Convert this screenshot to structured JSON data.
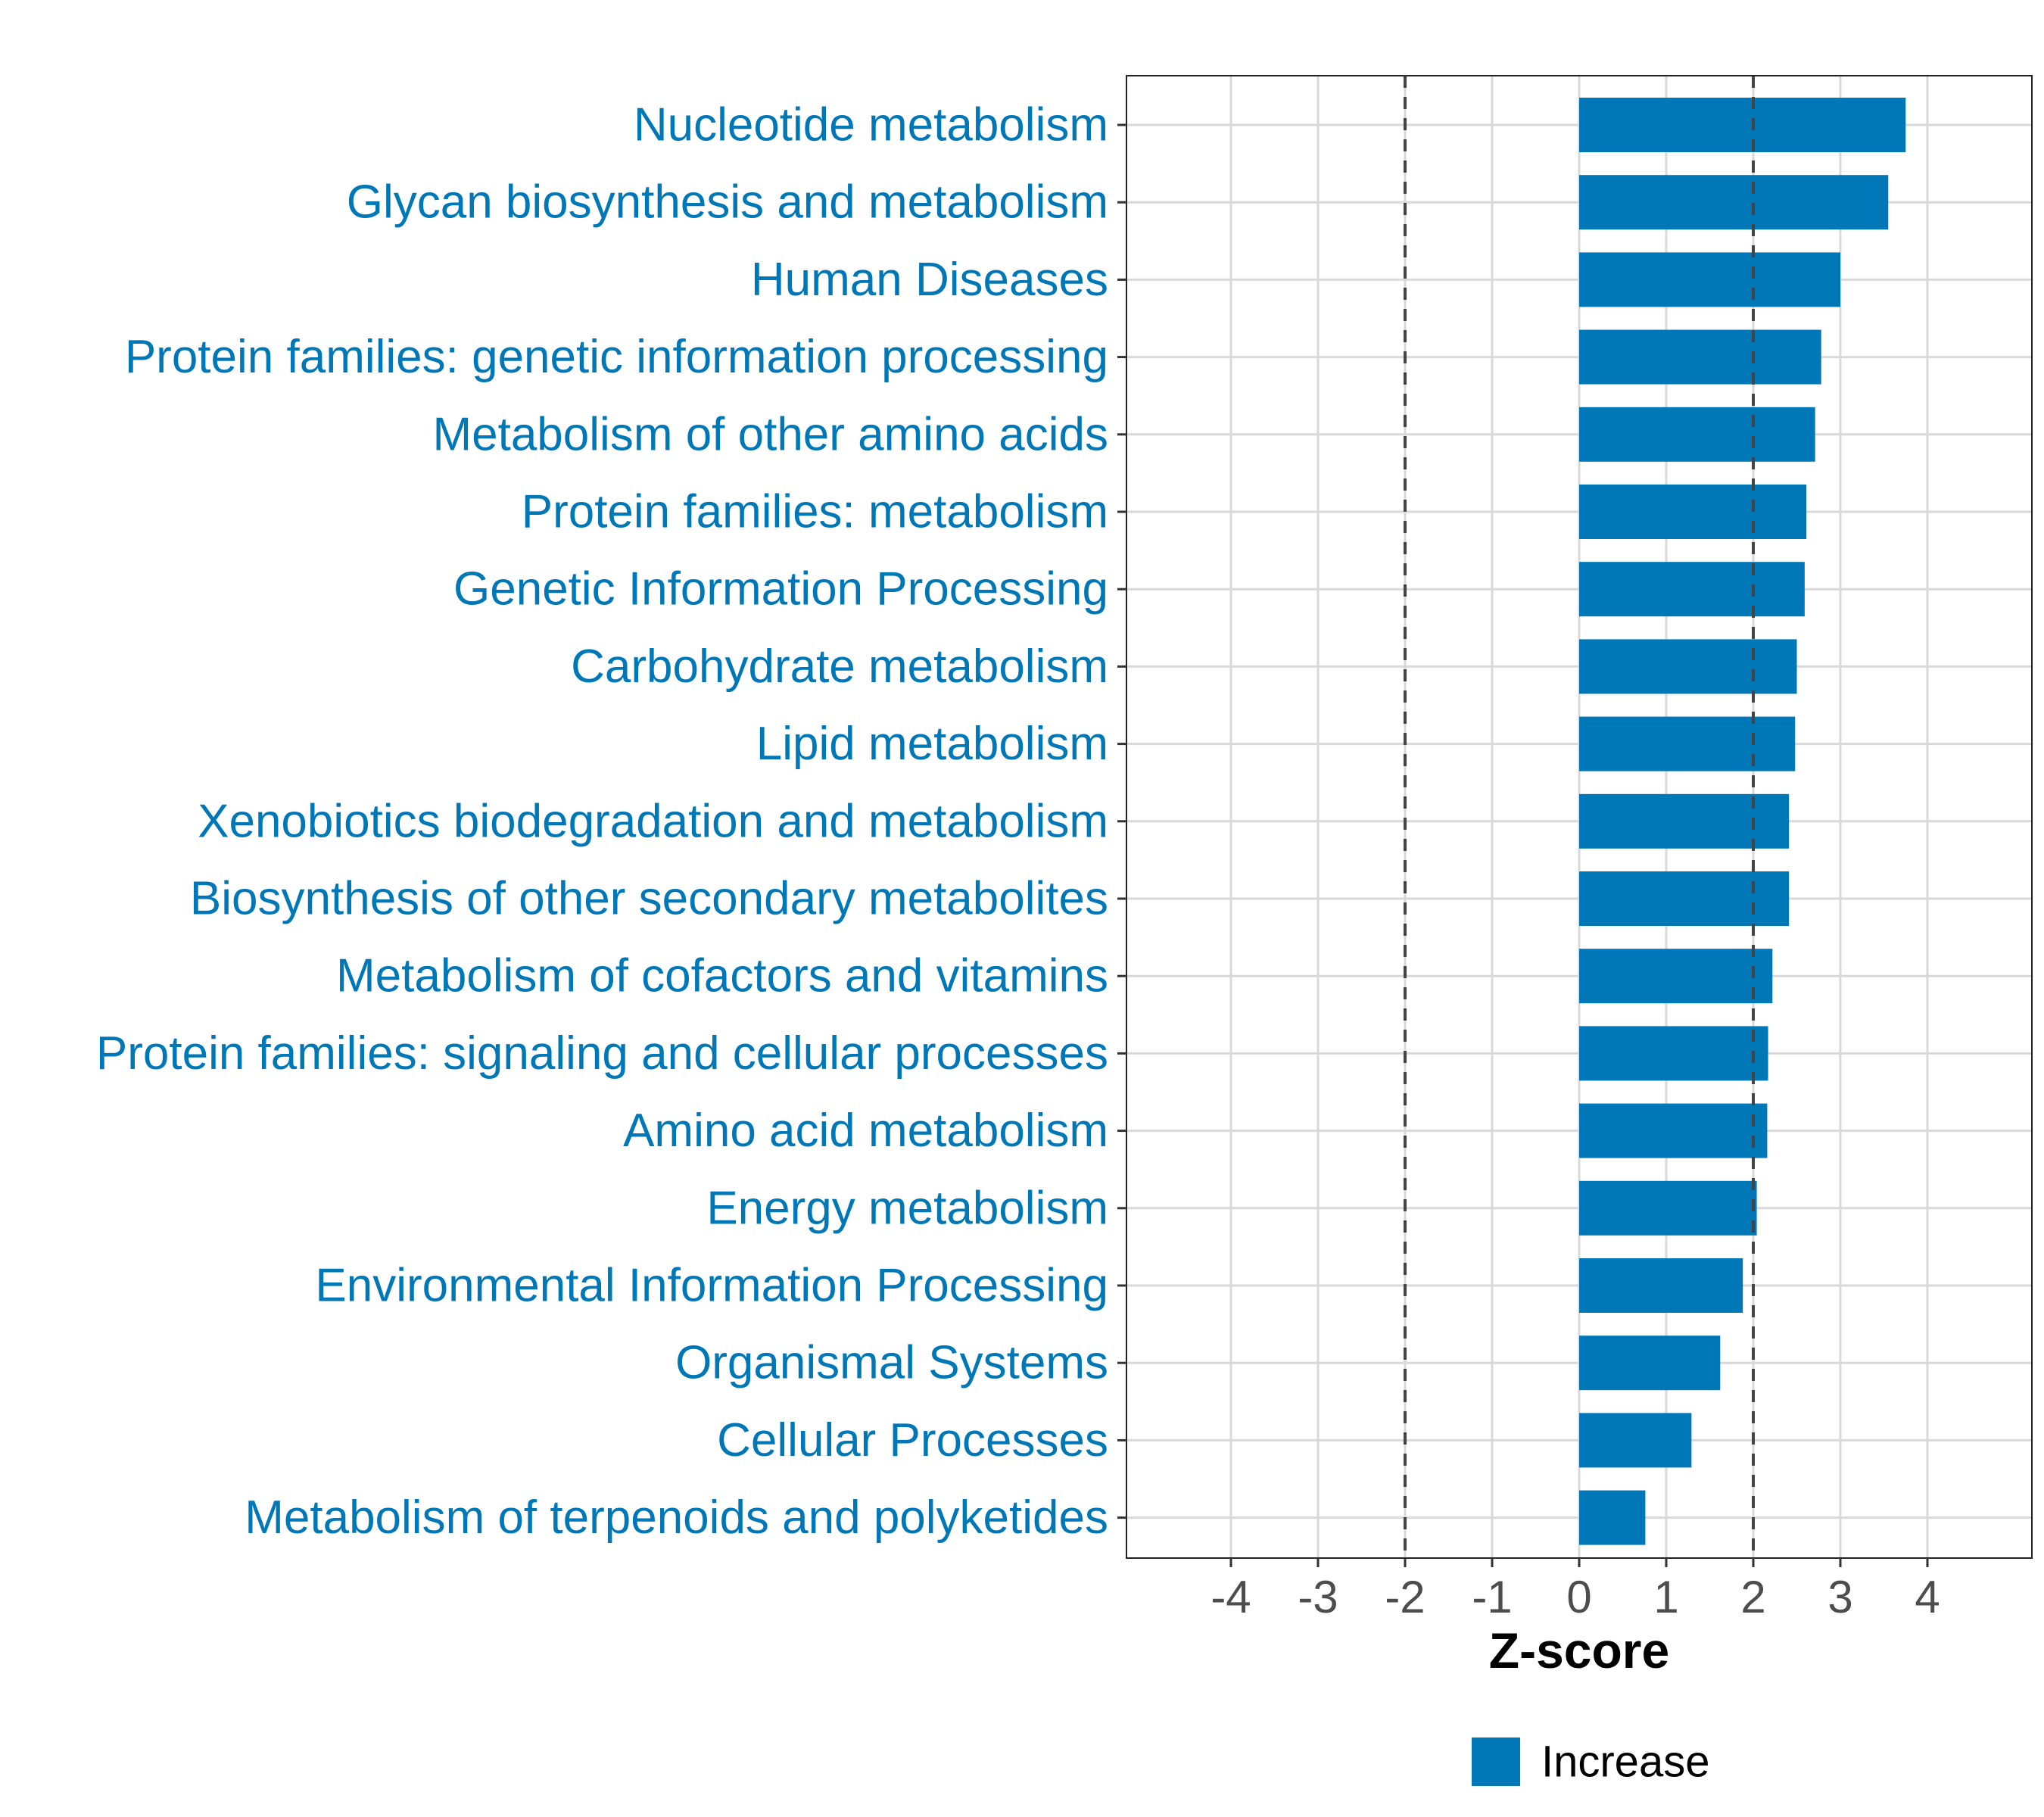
{
  "chart_data": {
    "type": "bar",
    "orientation": "horizontal",
    "categories": [
      "Nucleotide metabolism",
      "Glycan biosynthesis and metabolism",
      "Human Diseases",
      "Protein families: genetic information processing",
      "Metabolism of other amino acids",
      "Protein families: metabolism",
      "Genetic Information Processing",
      "Carbohydrate metabolism",
      "Lipid metabolism",
      "Xenobiotics biodegradation and metabolism",
      "Biosynthesis of other secondary metabolites",
      "Metabolism of cofactors and vitamins",
      "Protein families: signaling and cellular processes",
      "Amino acid metabolism",
      "Energy metabolism",
      "Environmental Information Processing",
      "Organismal Systems",
      "Cellular Processes",
      "Metabolism of terpenoids and polyketides"
    ],
    "values": [
      3.75,
      3.55,
      3.0,
      2.78,
      2.71,
      2.61,
      2.59,
      2.5,
      2.48,
      2.41,
      2.41,
      2.22,
      2.17,
      2.16,
      2.04,
      1.88,
      1.62,
      1.29,
      0.76
    ],
    "xlabel": "Z-score",
    "ylabel": "",
    "xlim": [
      -5.2,
      5.2
    ],
    "xticks": [
      -4,
      -3,
      -2,
      -1,
      0,
      1,
      2,
      3,
      4
    ],
    "xtick_labels": [
      "-4",
      "-3",
      "-2",
      "-1",
      "0",
      "1",
      "2",
      "3",
      "4"
    ],
    "reference_lines": [
      -2,
      2
    ],
    "grid": true,
    "legend": {
      "position": "bottom",
      "entries": [
        {
          "label": "Increase",
          "color": "#0077b6"
        }
      ]
    },
    "colors": {
      "bar": "#0077b6",
      "label": "#0077b6",
      "grid": "#d9d9d9",
      "reference": "#444444"
    }
  }
}
